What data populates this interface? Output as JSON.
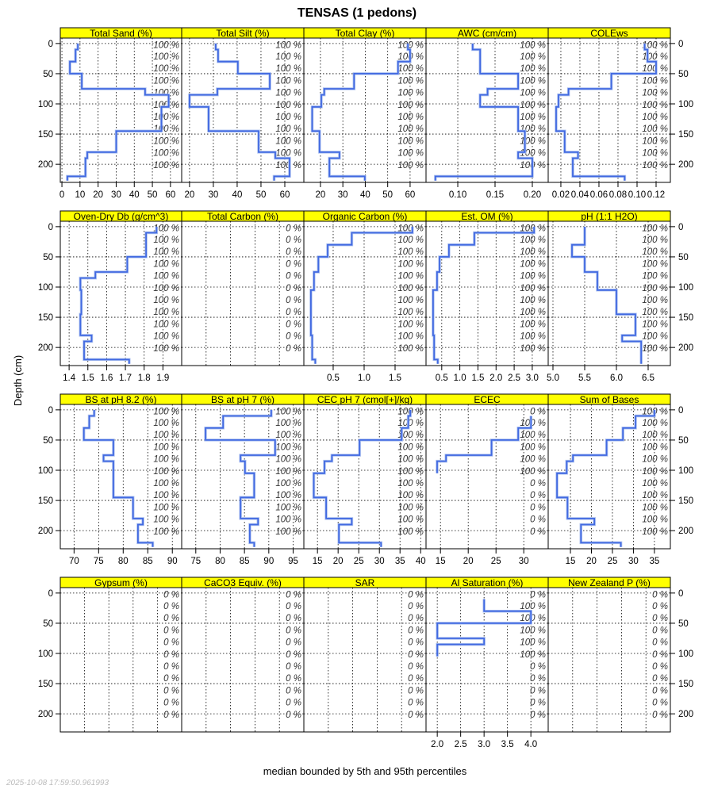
{
  "title": "TENSAS (1 pedons)",
  "ylabel": "Depth (cm)",
  "xlabel": "median bounded by 5th and 95th percentiles",
  "timestamp": "2025-10-08 17:59:50.961993",
  "colors": {
    "strip": "#FFFF00",
    "line": "#4169E1",
    "band": "#B0C4F0",
    "grid": "#000000"
  },
  "chart_data": {
    "type": "line",
    "layout": "lattice 5 columns x 4 rows",
    "ylim": [
      230,
      -9
    ],
    "y_ticks": [
      0,
      50,
      100,
      150,
      200
    ],
    "y_tick_labels": [
      "0",
      "50",
      "100",
      "150",
      "200"
    ],
    "pct_depths": [
      2,
      21,
      41,
      61,
      81,
      101,
      121,
      141,
      161,
      181,
      201
    ],
    "default_depths": [
      0,
      10,
      30,
      50,
      75,
      85,
      105,
      145,
      180,
      190,
      220,
      227
    ],
    "panels": [
      {
        "title": "Total Sand (%)",
        "xlim": [
          -0.9,
          66.2
        ],
        "ticks": [
          0,
          10,
          20,
          30,
          40,
          50,
          60
        ],
        "tick_labels": [
          "0",
          "10",
          "20",
          "30",
          "40",
          "50",
          "60"
        ],
        "values": [
          8.8,
          7.5,
          4.4,
          11,
          46,
          59,
          55,
          30,
          14,
          13,
          3
        ],
        "pct": [
          "100 %",
          "100 %",
          "100 %",
          "100 %",
          "100 %",
          "100 %",
          "100 %",
          "100 %",
          "100 %",
          "100 %",
          "100 %"
        ]
      },
      {
        "title": "Total Silt (%)",
        "xlim": [
          16.7,
          68
        ],
        "ticks": [
          20,
          30,
          40,
          50,
          60
        ],
        "tick_labels": [
          "20",
          "30",
          "40",
          "50",
          "60"
        ],
        "values": [
          31,
          32,
          40.3,
          53.7,
          31.7,
          20,
          28,
          49,
          56,
          62,
          55.5
        ],
        "pct": [
          "100 %",
          "100 %",
          "100 %",
          "100 %",
          "100 %",
          "100 %",
          "100 %",
          "100 %",
          "100 %",
          "100 %",
          "100 %"
        ]
      },
      {
        "title": "Total Clay (%)",
        "xlim": [
          12.6,
          67.1
        ],
        "ticks": [
          20,
          30,
          40,
          50,
          60
        ],
        "tick_labels": [
          "20",
          "30",
          "40",
          "50",
          "60"
        ],
        "values": [
          59,
          60,
          54.6,
          35,
          21.7,
          20.4,
          16.3,
          19.6,
          28.5,
          24,
          39.8
        ],
        "pct": [
          "100 %",
          "100 %",
          "100 %",
          "100 %",
          "100 %",
          "100 %",
          "100 %",
          "100 %",
          "100 %",
          "100 %",
          "100 %"
        ]
      },
      {
        "title": "AWC (cm/cm)",
        "xlim": [
          0.0574,
          0.2213
        ],
        "ticks": [
          0.1,
          0.15,
          0.2
        ],
        "tick_labels": [
          "0.10",
          "0.15",
          "0.20"
        ],
        "values": [
          0.12,
          0.13,
          0.13,
          0.181,
          0.14,
          0.13,
          0.181,
          0.19,
          0.181,
          0.2,
          0.07
        ],
        "pct": [
          "100 %",
          "100 %",
          "100 %",
          "100 %",
          "100 %",
          "100 %",
          "100 %",
          "100 %",
          "100 %",
          "100 %",
          "100 %"
        ]
      },
      {
        "title": "COLEws",
        "xlim": [
          0.0067,
          0.135
        ],
        "ticks": [
          0.02,
          0.04,
          0.06,
          0.08,
          0.1,
          0.12
        ],
        "tick_labels": [
          "0.02",
          "0.04",
          "0.06",
          "0.08",
          "0.10",
          "0.12"
        ],
        "values": [
          0.108,
          0.111,
          0.12,
          0.073,
          0.028,
          0.0175,
          0.015,
          0.024,
          0.038,
          0.0325,
          0.087
        ],
        "pct": [
          "100 %",
          "100 %",
          "100 %",
          "100 %",
          "100 %",
          "100 %",
          "100 %",
          "100 %",
          "100 %",
          "100 %",
          "100 %"
        ]
      },
      {
        "title": "Oven-Dry Db (g/cm^3)",
        "xlim": [
          1.353,
          2.0
        ],
        "ticks": [
          1.4,
          1.5,
          1.6,
          1.7,
          1.8,
          1.9
        ],
        "tick_labels": [
          "1.4",
          "1.5",
          "1.6",
          "1.7",
          "1.8",
          "1.9"
        ],
        "values": [
          1.866,
          1.81,
          1.81,
          1.71,
          1.54,
          1.46,
          1.465,
          1.46,
          1.52,
          1.48,
          1.72
        ],
        "pct": [
          "100 %",
          "100 %",
          "100 %",
          "100 %",
          "100 %",
          "100 %",
          "100 %",
          "100 %",
          "100 %",
          "100 %",
          "100 %"
        ]
      },
      {
        "title": "Total Carbon (%)",
        "xlim": [
          0,
          1
        ],
        "ticks": [
          0.2,
          0.4,
          0.6,
          0.8
        ],
        "tick_labels": [],
        "values": [],
        "pct": [
          "0 %",
          "0 %",
          "0 %",
          "0 %",
          "0 %",
          "0 %",
          "0 %",
          "0 %",
          "0 %",
          "0 %",
          "0 %"
        ]
      },
      {
        "title": "Organic Carbon (%)",
        "xlim": [
          0.026,
          2.0
        ],
        "ticks": [
          0.5,
          1.0,
          1.5
        ],
        "tick_labels": [
          "0.5",
          "1.0",
          "1.5"
        ],
        "values": [
          1.78,
          0.8,
          0.41,
          0.26,
          0.19,
          0.19,
          0.14,
          0.14,
          0.16,
          0.16,
          0.21
        ],
        "pct": [
          "100 %",
          "100 %",
          "100 %",
          "100 %",
          "100 %",
          "100 %",
          "100 %",
          "100 %",
          "100 %",
          "100 %",
          "100 %"
        ]
      },
      {
        "title": "Est. OM (%)",
        "xlim": [
          0.066,
          3.44
        ],
        "ticks": [
          0.5,
          1.0,
          1.5,
          2.0,
          2.5,
          3.0
        ],
        "tick_labels": [
          "0.5",
          "1.0",
          "1.5",
          "2.0",
          "2.5",
          "3.0"
        ],
        "values": [
          3.05,
          1.4,
          0.7,
          0.44,
          0.37,
          0.37,
          0.26,
          0.26,
          0.29,
          0.29,
          0.39
        ],
        "pct": [
          "100 %",
          "100 %",
          "100 %",
          "100 %",
          "100 %",
          "100 %",
          "100 %",
          "100 %",
          "100 %",
          "100 %",
          "100 %"
        ]
      },
      {
        "title": "pH (1:1 H2O)",
        "xlim": [
          4.925,
          6.85
        ],
        "ticks": [
          5.0,
          5.5,
          6.0,
          6.5
        ],
        "tick_labels": [
          "5.0",
          "5.5",
          "6.0",
          "6.5"
        ],
        "values": [
          5.5,
          5.5,
          5.3,
          5.5,
          5.7,
          5.7,
          6.0,
          6.3,
          6.09,
          6.39,
          6.39
        ],
        "pct": [
          "100 %",
          "100 %",
          "100 %",
          "100 %",
          "100 %",
          "100 %",
          "100 %",
          "100 %",
          "100 %",
          "100 %",
          "100 %"
        ]
      },
      {
        "title": "BS at pH 8.2 (%)",
        "xlim": [
          67.2,
          91.9
        ],
        "ticks": [
          70,
          75,
          80,
          85,
          90
        ],
        "tick_labels": [
          "70",
          "75",
          "80",
          "85",
          "90"
        ],
        "values": [
          74.1,
          73.1,
          72.0,
          78,
          76,
          78,
          78,
          82,
          84,
          83,
          86
        ],
        "pct": [
          "100 %",
          "100 %",
          "100 %",
          "100 %",
          "100 %",
          "100 %",
          "100 %",
          "100 %",
          "100 %",
          "100 %",
          "100 %"
        ]
      },
      {
        "title": "BS at pH 7 (%)",
        "xlim": [
          72.1,
          97.2
        ],
        "ticks": [
          75,
          80,
          85,
          90,
          95
        ],
        "tick_labels": [
          "75",
          "80",
          "85",
          "90",
          "95"
        ],
        "values": [
          90.5,
          80.6,
          77,
          91.3,
          84.2,
          85.1,
          87,
          84.2,
          87.8,
          86.1,
          87
        ],
        "pct": [
          "100 %",
          "100 %",
          "100 %",
          "100 %",
          "100 %",
          "100 %",
          "100 %",
          "100 %",
          "100 %",
          "100 %",
          "100 %"
        ]
      },
      {
        "title": "CEC pH 7 (cmol[+]/kg)",
        "xlim": [
          11.7,
          41.3
        ],
        "ticks": [
          15,
          20,
          25,
          30,
          35,
          40
        ],
        "tick_labels": [
          "15",
          "20",
          "25",
          "30",
          "35",
          "40"
        ],
        "values": [
          37.5,
          37,
          35.4,
          25.2,
          18.5,
          16.7,
          14.1,
          17.1,
          23.3,
          20.2,
          30.4
        ],
        "pct": [
          "100 %",
          "100 %",
          "100 %",
          "100 %",
          "100 %",
          "100 %",
          "100 %",
          "100 %",
          "100 %",
          "100 %",
          "100 %"
        ]
      },
      {
        "title": "ECEC",
        "xlim": [
          12.4,
          34.4
        ],
        "ticks": [
          15,
          20,
          25,
          30
        ],
        "tick_labels": [
          "15",
          "20",
          "25",
          "30"
        ],
        "depths": [
          10,
          30,
          50,
          75,
          85,
          105
        ],
        "values": [
          31.3,
          29,
          24.2,
          16,
          14.4
        ],
        "pct": [
          "0 %",
          "100 %",
          "100 %",
          "100 %",
          "100 %",
          "100 %",
          "0 %",
          "0 %",
          "0 %",
          "0 %",
          "0 %"
        ]
      },
      {
        "title": "Sum of Bases",
        "xlim": [
          9.7,
          38.8
        ],
        "ticks": [
          15,
          20,
          25,
          30,
          35
        ],
        "tick_labels": [
          "15",
          "20",
          "25",
          "30",
          "35"
        ],
        "values": [
          35,
          30.5,
          27.5,
          23.6,
          15.6,
          14.1,
          11.8,
          14.3,
          20.7,
          17.5,
          27
        ],
        "pct": [
          "100 %",
          "100 %",
          "100 %",
          "100 %",
          "100 %",
          "100 %",
          "100 %",
          "100 %",
          "100 %",
          "100 %",
          "100 %"
        ]
      },
      {
        "title": "Gypsum (%)",
        "xlim": [
          0,
          1
        ],
        "ticks": [
          0.2,
          0.4,
          0.6,
          0.8
        ],
        "tick_labels": [],
        "values": [],
        "pct": [
          "0 %",
          "0 %",
          "0 %",
          "0 %",
          "0 %",
          "0 %",
          "0 %",
          "0 %",
          "0 %",
          "0 %",
          "0 %"
        ]
      },
      {
        "title": "CaCO3 Equiv. (%)",
        "xlim": [
          0,
          1
        ],
        "ticks": [
          0.2,
          0.4,
          0.6,
          0.8
        ],
        "tick_labels": [],
        "values": [],
        "pct": [
          "0 %",
          "0 %",
          "0 %",
          "0 %",
          "0 %",
          "0 %",
          "0 %",
          "0 %",
          "0 %",
          "0 %",
          "0 %"
        ]
      },
      {
        "title": "SAR",
        "xlim": [
          0,
          1
        ],
        "ticks": [
          0.2,
          0.4,
          0.6,
          0.8
        ],
        "tick_labels": [],
        "values": [],
        "pct": [
          "0 %",
          "0 %",
          "0 %",
          "0 %",
          "0 %",
          "0 %",
          "0 %",
          "0 %",
          "0 %",
          "0 %",
          "0 %"
        ]
      },
      {
        "title": "Al Saturation (%)",
        "xlim": [
          1.76,
          4.37
        ],
        "ticks": [
          2.0,
          2.5,
          3.0,
          3.5,
          4.0
        ],
        "tick_labels": [
          "2.0",
          "2.5",
          "3.0",
          "3.5",
          "4.0"
        ],
        "depths": [
          10,
          30,
          50,
          75,
          85,
          105
        ],
        "values": [
          3,
          4,
          2,
          3,
          2
        ],
        "pct": [
          "0 %",
          "100 %",
          "100 %",
          "100 %",
          "100 %",
          "100 %",
          "0 %",
          "0 %",
          "0 %",
          "0 %",
          "0 %"
        ]
      },
      {
        "title": "New Zealand P (%)",
        "xlim": [
          0,
          1
        ],
        "ticks": [
          0.2,
          0.4,
          0.6,
          0.8
        ],
        "tick_labels": [],
        "values": [],
        "pct": [
          "0 %",
          "0 %",
          "0 %",
          "0 %",
          "0 %",
          "0 %",
          "0 %",
          "0 %",
          "0 %",
          "0 %",
          "0 %"
        ]
      }
    ]
  }
}
